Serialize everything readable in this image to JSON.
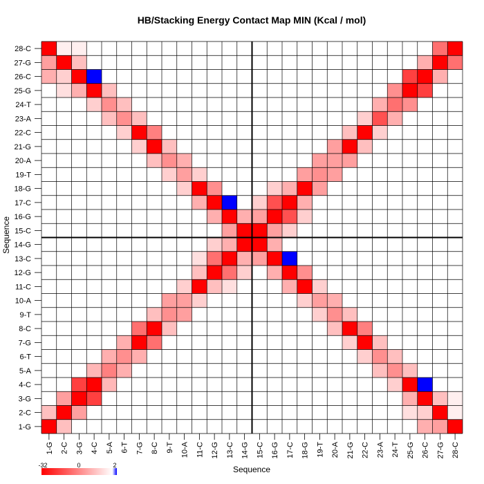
{
  "chart_data": {
    "type": "heatmap",
    "title": "HB/Stacking Energy Contact Map MIN (Kcal / mol)",
    "xlabel": "Sequence",
    "ylabel": "Sequence",
    "sequence": [
      "1-G",
      "2-C",
      "3-G",
      "4-C",
      "5-A",
      "6-T",
      "7-G",
      "8-C",
      "9-T",
      "10-A",
      "11-C",
      "12-G",
      "13-C",
      "14-G",
      "15-C",
      "16-G",
      "17-C",
      "18-G",
      "19-T",
      "20-A",
      "21-G",
      "22-C",
      "23-A",
      "24-T",
      "25-G",
      "26-C",
      "27-G",
      "28-C"
    ],
    "colorbar": {
      "min": -32,
      "mid": 0,
      "max": 2,
      "tick_labels": [
        "-32",
        "0",
        "2"
      ]
    },
    "colors": {
      "negative": "#ff0000",
      "zero": "#ffffff",
      "positive": "#0000ff",
      "divider": "#000000",
      "grid": "#000000"
    },
    "dividers_after_index": [
      14
    ],
    "note_values_unit": "Kcal/mol",
    "cells": [
      [
        1,
        1,
        -32
      ],
      [
        2,
        2,
        -32
      ],
      [
        3,
        3,
        -32
      ],
      [
        4,
        4,
        -32
      ],
      [
        5,
        5,
        -16
      ],
      [
        6,
        6,
        -14
      ],
      [
        7,
        7,
        -32
      ],
      [
        8,
        8,
        -32
      ],
      [
        9,
        9,
        -14
      ],
      [
        10,
        10,
        -12
      ],
      [
        11,
        11,
        -32
      ],
      [
        12,
        12,
        -32
      ],
      [
        13,
        13,
        -32
      ],
      [
        14,
        14,
        -32
      ],
      [
        15,
        15,
        -32
      ],
      [
        16,
        16,
        -32
      ],
      [
        17,
        17,
        -32
      ],
      [
        18,
        18,
        -32
      ],
      [
        19,
        19,
        -14
      ],
      [
        20,
        20,
        -12
      ],
      [
        21,
        21,
        -32
      ],
      [
        22,
        22,
        -32
      ],
      [
        23,
        23,
        -22
      ],
      [
        24,
        24,
        -18
      ],
      [
        25,
        25,
        -32
      ],
      [
        26,
        26,
        -32
      ],
      [
        27,
        27,
        -32
      ],
      [
        28,
        28,
        -32
      ],
      [
        1,
        2,
        -8
      ],
      [
        2,
        1,
        -8
      ],
      [
        2,
        3,
        -12
      ],
      [
        3,
        2,
        -12
      ],
      [
        3,
        4,
        -24
      ],
      [
        4,
        3,
        -24
      ],
      [
        4,
        5,
        -9
      ],
      [
        5,
        4,
        -9
      ],
      [
        5,
        6,
        -10
      ],
      [
        6,
        5,
        -10
      ],
      [
        6,
        7,
        -10
      ],
      [
        7,
        6,
        -10
      ],
      [
        7,
        8,
        -18
      ],
      [
        8,
        7,
        -18
      ],
      [
        8,
        9,
        -8
      ],
      [
        9,
        8,
        -8
      ],
      [
        9,
        10,
        -12
      ],
      [
        10,
        9,
        -12
      ],
      [
        10,
        11,
        -6
      ],
      [
        11,
        10,
        -6
      ],
      [
        11,
        12,
        -8
      ],
      [
        12,
        11,
        -8
      ],
      [
        12,
        13,
        -18
      ],
      [
        13,
        12,
        -18
      ],
      [
        14,
        15,
        -12
      ],
      [
        15,
        14,
        -12
      ],
      [
        15,
        16,
        -12
      ],
      [
        16,
        15,
        -12
      ],
      [
        16,
        17,
        -22
      ],
      [
        17,
        16,
        -22
      ],
      [
        17,
        18,
        -10
      ],
      [
        18,
        17,
        -10
      ],
      [
        18,
        19,
        -12
      ],
      [
        19,
        18,
        -12
      ],
      [
        19,
        20,
        -12
      ],
      [
        20,
        19,
        -12
      ],
      [
        20,
        21,
        -12
      ],
      [
        21,
        20,
        -12
      ],
      [
        21,
        22,
        -8
      ],
      [
        22,
        21,
        -8
      ],
      [
        22,
        23,
        -6
      ],
      [
        23,
        22,
        -6
      ],
      [
        23,
        24,
        -10
      ],
      [
        24,
        23,
        -10
      ],
      [
        24,
        25,
        -14
      ],
      [
        25,
        24,
        -14
      ],
      [
        25,
        26,
        -24
      ],
      [
        26,
        25,
        -24
      ],
      [
        26,
        27,
        -10
      ],
      [
        27,
        26,
        -10
      ],
      [
        27,
        28,
        -18
      ],
      [
        28,
        27,
        -18
      ],
      [
        1,
        28,
        -32
      ],
      [
        2,
        27,
        -32
      ],
      [
        3,
        26,
        -32
      ],
      [
        4,
        25,
        -32
      ],
      [
        5,
        24,
        -14
      ],
      [
        6,
        23,
        -14
      ],
      [
        7,
        22,
        -32
      ],
      [
        8,
        21,
        -32
      ],
      [
        9,
        20,
        -14
      ],
      [
        10,
        19,
        -12
      ],
      [
        11,
        18,
        -32
      ],
      [
        12,
        17,
        -32
      ],
      [
        13,
        16,
        -32
      ],
      [
        14,
        15,
        -32
      ],
      [
        28,
        1,
        -32
      ],
      [
        27,
        2,
        -32
      ],
      [
        26,
        3,
        -32
      ],
      [
        25,
        4,
        -32
      ],
      [
        24,
        5,
        -14
      ],
      [
        23,
        6,
        -14
      ],
      [
        22,
        7,
        -32
      ],
      [
        21,
        8,
        -32
      ],
      [
        20,
        9,
        -14
      ],
      [
        19,
        10,
        -12
      ],
      [
        18,
        11,
        -32
      ],
      [
        17,
        12,
        -32
      ],
      [
        16,
        13,
        -32
      ],
      [
        15,
        14,
        -32
      ],
      [
        4,
        26,
        2
      ],
      [
        26,
        4,
        2
      ],
      [
        13,
        17,
        2
      ],
      [
        17,
        13,
        2
      ],
      [
        2,
        28,
        -2
      ],
      [
        28,
        2,
        -2
      ],
      [
        1,
        27,
        -12
      ],
      [
        27,
        1,
        -12
      ],
      [
        3,
        28,
        -2
      ],
      [
        28,
        3,
        -2
      ],
      [
        1,
        26,
        -10
      ],
      [
        26,
        1,
        -10
      ],
      [
        3,
        25,
        -10
      ],
      [
        25,
        3,
        -10
      ],
      [
        2,
        26,
        -6
      ],
      [
        26,
        2,
        -6
      ],
      [
        3,
        27,
        -8
      ],
      [
        27,
        3,
        -8
      ],
      [
        2,
        25,
        -4
      ],
      [
        25,
        2,
        -4
      ],
      [
        4,
        24,
        -6
      ],
      [
        24,
        4,
        -6
      ],
      [
        5,
        25,
        -8
      ],
      [
        25,
        5,
        -8
      ],
      [
        5,
        23,
        -8
      ],
      [
        23,
        5,
        -8
      ],
      [
        6,
        24,
        -8
      ],
      [
        24,
        6,
        -8
      ],
      [
        6,
        22,
        -6
      ],
      [
        22,
        6,
        -6
      ],
      [
        7,
        23,
        -8
      ],
      [
        23,
        7,
        -8
      ],
      [
        7,
        21,
        -6
      ],
      [
        21,
        7,
        -6
      ],
      [
        8,
        22,
        -16
      ],
      [
        22,
        8,
        -16
      ],
      [
        8,
        20,
        -8
      ],
      [
        20,
        8,
        -8
      ],
      [
        9,
        21,
        -8
      ],
      [
        21,
        9,
        -8
      ],
      [
        9,
        19,
        -6
      ],
      [
        19,
        9,
        -6
      ],
      [
        10,
        20,
        -10
      ],
      [
        20,
        10,
        -10
      ],
      [
        10,
        18,
        -6
      ],
      [
        18,
        10,
        -6
      ],
      [
        11,
        19,
        -6
      ],
      [
        19,
        11,
        -6
      ],
      [
        11,
        17,
        -10
      ],
      [
        17,
        11,
        -10
      ],
      [
        12,
        18,
        -14
      ],
      [
        18,
        12,
        -14
      ],
      [
        12,
        16,
        -10
      ],
      [
        16,
        12,
        -10
      ],
      [
        13,
        15,
        -12
      ],
      [
        15,
        13,
        -12
      ],
      [
        14,
        16,
        -10
      ],
      [
        16,
        14,
        -10
      ],
      [
        12,
        14,
        -6
      ],
      [
        14,
        12,
        -6
      ],
      [
        11,
        13,
        -4
      ],
      [
        13,
        11,
        -4
      ],
      [
        13,
        14,
        -10
      ],
      [
        14,
        13,
        -10
      ],
      [
        15,
        17,
        -6
      ],
      [
        17,
        15,
        -6
      ],
      [
        16,
        18,
        -6
      ],
      [
        18,
        16,
        -6
      ],
      [
        15,
        16,
        -12
      ],
      [
        16,
        15,
        -12
      ]
    ]
  }
}
